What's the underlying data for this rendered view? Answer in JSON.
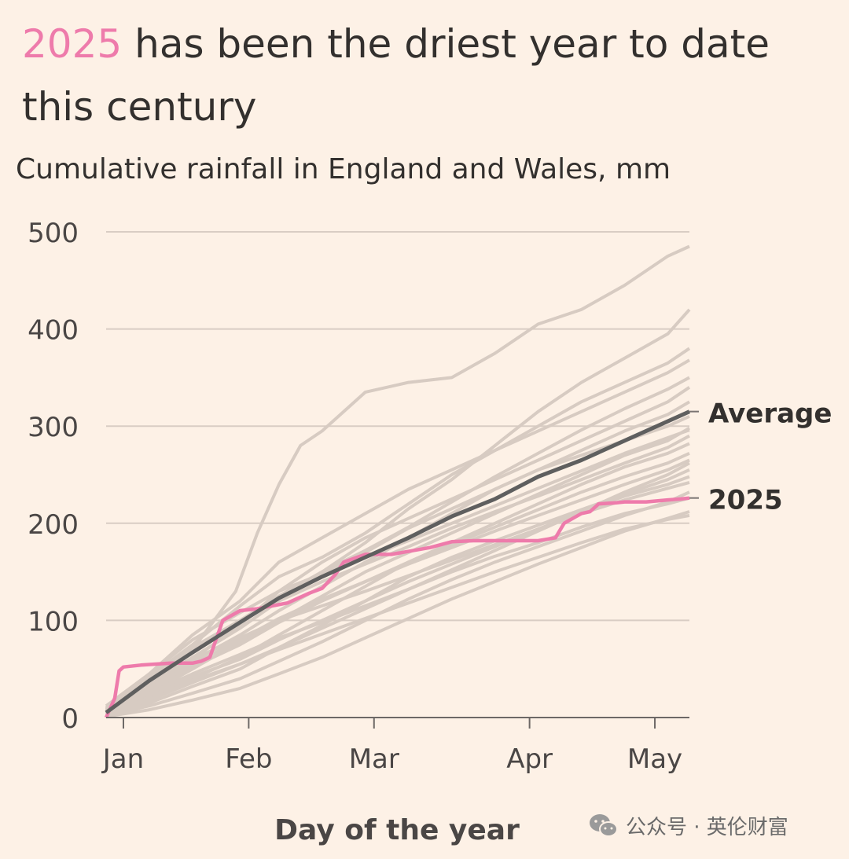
{
  "header": {
    "title_highlight": "2025",
    "title_rest": " has been the driest year to date this century",
    "subtitle": "Cumulative rainfall in England and Wales, mm"
  },
  "watermark": {
    "text": "公众号 · 英伦财富",
    "icon": "wechat-icon"
  },
  "colors": {
    "background": "#fdf1e6",
    "highlight": "#ee7bab",
    "average": "#5f5f5f",
    "history": "#d7cbc2",
    "grid": "#d9cdc4"
  },
  "chart_data": {
    "type": "line",
    "title": "",
    "xlabel": "Day of the year",
    "ylabel": "",
    "xlim": [
      0,
      135
    ],
    "ylim": [
      0,
      500
    ],
    "yticks": [
      0,
      100,
      200,
      300,
      400,
      500
    ],
    "xticks": [
      {
        "label": "Jan",
        "day": 4
      },
      {
        "label": "Feb",
        "day": 33
      },
      {
        "label": "Mar",
        "day": 62
      },
      {
        "label": "Apr",
        "day": 98
      },
      {
        "label": "May",
        "day": 127
      }
    ],
    "series": [
      {
        "name": "Average",
        "role": "average",
        "x": [
          0,
          10,
          20,
          31,
          40,
          50,
          59,
          70,
          80,
          90,
          100,
          110,
          120,
          135
        ],
        "y": [
          5,
          38,
          67,
          98,
          123,
          145,
          163,
          185,
          207,
          225,
          248,
          265,
          285,
          315
        ]
      },
      {
        "name": "2025",
        "role": "highlight",
        "x": [
          0,
          2,
          3,
          4,
          8,
          15,
          20,
          22,
          24,
          27,
          31,
          35,
          42,
          47,
          50,
          53,
          55,
          60,
          62,
          66,
          75,
          80,
          85,
          100,
          104,
          106,
          110,
          112,
          114,
          118,
          120,
          125,
          130,
          133,
          135
        ],
        "y": [
          0,
          20,
          48,
          52,
          54,
          56,
          56,
          58,
          62,
          100,
          110,
          112,
          118,
          128,
          133,
          147,
          160,
          168,
          168,
          168,
          175,
          181,
          182,
          182,
          185,
          200,
          210,
          212,
          220,
          221,
          222,
          222,
          224,
          225,
          226
        ]
      }
    ],
    "history": [
      {
        "x": [
          0,
          10,
          20,
          30,
          35,
          40,
          45,
          50,
          60,
          70,
          80,
          90,
          100,
          110,
          120,
          130,
          135
        ],
        "y": [
          10,
          40,
          70,
          130,
          190,
          240,
          280,
          295,
          335,
          345,
          350,
          375,
          405,
          420,
          445,
          475,
          485
        ]
      },
      {
        "x": [
          0,
          10,
          20,
          31,
          40,
          50,
          60,
          70,
          80,
          90,
          100,
          110,
          120,
          130,
          135
        ],
        "y": [
          6,
          35,
          62,
          92,
          120,
          150,
          180,
          215,
          245,
          280,
          315,
          345,
          370,
          395,
          420
        ]
      },
      {
        "x": [
          0,
          10,
          20,
          31,
          40,
          50,
          60,
          70,
          80,
          90,
          100,
          110,
          120,
          130,
          135
        ],
        "y": [
          8,
          42,
          75,
          115,
          145,
          165,
          190,
          220,
          250,
          275,
          300,
          325,
          345,
          365,
          380
        ]
      },
      {
        "x": [
          0,
          10,
          20,
          31,
          40,
          50,
          60,
          70,
          80,
          90,
          100,
          110,
          120,
          130,
          135
        ],
        "y": [
          12,
          45,
          85,
          120,
          160,
          185,
          210,
          235,
          255,
          275,
          295,
          315,
          335,
          355,
          368
        ]
      },
      {
        "x": [
          0,
          10,
          20,
          31,
          40,
          50,
          60,
          70,
          80,
          90,
          100,
          110,
          120,
          130,
          135
        ],
        "y": [
          4,
          30,
          60,
          95,
          130,
          160,
          185,
          205,
          225,
          245,
          265,
          285,
          305,
          325,
          340
        ]
      },
      {
        "x": [
          0,
          10,
          20,
          31,
          40,
          50,
          60,
          70,
          80,
          90,
          100,
          110,
          120,
          130,
          135
        ],
        "y": [
          5,
          32,
          58,
          85,
          110,
          135,
          160,
          185,
          210,
          235,
          255,
          275,
          295,
          312,
          325
        ]
      },
      {
        "x": [
          0,
          10,
          20,
          31,
          40,
          50,
          60,
          70,
          80,
          90,
          100,
          110,
          120,
          130,
          135
        ],
        "y": [
          7,
          38,
          70,
          100,
          125,
          150,
          170,
          195,
          215,
          235,
          255,
          270,
          285,
          300,
          310
        ]
      },
      {
        "x": [
          0,
          10,
          20,
          31,
          40,
          50,
          60,
          70,
          80,
          90,
          100,
          110,
          120,
          130,
          135
        ],
        "y": [
          3,
          25,
          50,
          78,
          100,
          125,
          150,
          170,
          190,
          210,
          230,
          250,
          270,
          285,
          298
        ]
      },
      {
        "x": [
          0,
          10,
          20,
          31,
          40,
          50,
          60,
          70,
          80,
          90,
          100,
          110,
          120,
          130,
          135
        ],
        "y": [
          9,
          40,
          72,
          100,
          120,
          140,
          158,
          176,
          195,
          212,
          228,
          245,
          262,
          278,
          290
        ]
      },
      {
        "x": [
          0,
          10,
          20,
          31,
          40,
          50,
          60,
          70,
          80,
          90,
          100,
          110,
          120,
          130,
          135
        ],
        "y": [
          2,
          20,
          40,
          62,
          85,
          110,
          135,
          160,
          180,
          200,
          220,
          240,
          258,
          272,
          282
        ]
      },
      {
        "x": [
          0,
          10,
          20,
          31,
          40,
          50,
          60,
          70,
          80,
          90,
          100,
          110,
          120,
          130,
          135
        ],
        "y": [
          4,
          28,
          52,
          75,
          98,
          120,
          140,
          160,
          178,
          196,
          214,
          232,
          248,
          262,
          272
        ]
      },
      {
        "x": [
          0,
          10,
          20,
          31,
          40,
          50,
          60,
          70,
          80,
          90,
          100,
          110,
          120,
          130,
          135
        ],
        "y": [
          6,
          30,
          55,
          80,
          102,
          122,
          140,
          158,
          175,
          192,
          208,
          224,
          240,
          255,
          265
        ]
      },
      {
        "x": [
          0,
          10,
          20,
          31,
          40,
          50,
          60,
          70,
          80,
          90,
          100,
          110,
          120,
          130,
          135
        ],
        "y": [
          1,
          15,
          32,
          50,
          72,
          95,
          120,
          145,
          165,
          182,
          198,
          214,
          230,
          245,
          255
        ]
      },
      {
        "x": [
          0,
          10,
          20,
          31,
          40,
          50,
          60,
          70,
          80,
          90,
          100,
          110,
          120,
          130,
          135
        ],
        "y": [
          3,
          22,
          42,
          60,
          80,
          100,
          120,
          140,
          158,
          176,
          194,
          212,
          228,
          240,
          248
        ]
      },
      {
        "x": [
          0,
          10,
          20,
          31,
          40,
          50,
          60,
          70,
          80,
          90,
          100,
          110,
          120,
          130,
          135
        ],
        "y": [
          8,
          35,
          60,
          82,
          100,
          115,
          130,
          146,
          162,
          178,
          194,
          210,
          224,
          236,
          242
        ]
      },
      {
        "x": [
          0,
          10,
          20,
          31,
          40,
          50,
          60,
          70,
          80,
          90,
          100,
          110,
          120,
          130,
          135
        ],
        "y": [
          2,
          12,
          25,
          40,
          58,
          78,
          100,
          122,
          142,
          160,
          176,
          192,
          208,
          222,
          232
        ]
      },
      {
        "x": [
          0,
          10,
          20,
          31,
          40,
          50,
          60,
          70,
          80,
          90,
          100,
          110,
          120,
          130,
          135
        ],
        "y": [
          5,
          25,
          45,
          65,
          82,
          98,
          115,
          132,
          150,
          166,
          180,
          196,
          210,
          220,
          226
        ]
      },
      {
        "x": [
          0,
          10,
          20,
          31,
          40,
          50,
          60,
          70,
          80,
          90,
          100,
          110,
          120,
          130,
          135
        ],
        "y": [
          1,
          8,
          18,
          30,
          45,
          62,
          82,
          102,
          122,
          140,
          158,
          175,
          192,
          205,
          212
        ]
      },
      {
        "x": [
          0,
          10,
          20,
          31,
          40,
          50,
          60,
          70,
          80,
          90,
          100,
          110,
          120,
          130,
          135
        ],
        "y": [
          4,
          20,
          38,
          55,
          70,
          86,
          102,
          118,
          134,
          150,
          165,
          180,
          194,
          204,
          208
        ]
      },
      {
        "x": [
          0,
          10,
          20,
          31,
          40,
          50,
          60,
          70,
          80,
          90,
          100,
          110,
          120,
          130,
          135
        ],
        "y": [
          10,
          45,
          80,
          108,
          130,
          148,
          165,
          182,
          200,
          218,
          236,
          254,
          272,
          288,
          296
        ]
      },
      {
        "x": [
          0,
          10,
          20,
          31,
          40,
          50,
          60,
          70,
          80,
          90,
          100,
          110,
          120,
          130,
          135
        ],
        "y": [
          7,
          35,
          68,
          98,
          125,
          150,
          172,
          196,
          222,
          248,
          272,
          296,
          318,
          338,
          350
        ]
      },
      {
        "x": [
          0,
          10,
          20,
          31,
          40,
          50,
          60,
          70,
          80,
          90,
          100,
          110,
          120,
          130,
          135
        ],
        "y": [
          2,
          18,
          36,
          55,
          72,
          92,
          112,
          132,
          152,
          172,
          192,
          212,
          232,
          250,
          262
        ]
      }
    ]
  }
}
